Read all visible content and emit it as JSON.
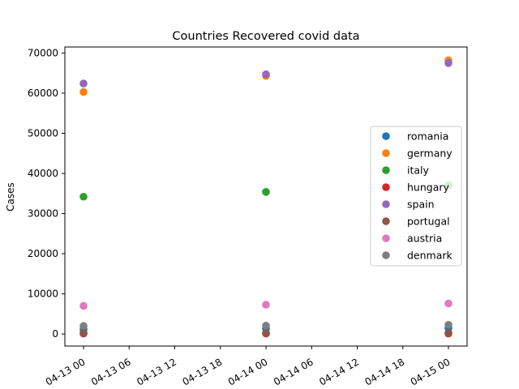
{
  "chart_data": {
    "type": "scatter",
    "title": "Countries Recovered covid data",
    "xlabel": "",
    "ylabel": "Cases",
    "x": [
      "2020-04-13 00:00",
      "2020-04-14 00:00",
      "2020-04-15 00:00"
    ],
    "x_ticks": [
      "04-13 00",
      "04-13 06",
      "04-13 12",
      "04-13 18",
      "04-14 00",
      "04-14 06",
      "04-14 12",
      "04-14 18",
      "04-15 00"
    ],
    "y_ticks": [
      0,
      10000,
      20000,
      30000,
      40000,
      50000,
      60000,
      70000
    ],
    "ylim": [
      -3000,
      71500
    ],
    "grid": false,
    "legend_position": "center-right",
    "series": [
      {
        "name": "romania",
        "color": "#1f77b4",
        "values": [
          1100,
          1300,
          1500
        ]
      },
      {
        "name": "germany",
        "color": "#ff7f0e",
        "values": [
          60300,
          64300,
          68200
        ]
      },
      {
        "name": "italy",
        "color": "#2ca02c",
        "values": [
          34200,
          35400,
          37100
        ]
      },
      {
        "name": "hungary",
        "color": "#d62728",
        "values": [
          100,
          110,
          120
        ]
      },
      {
        "name": "spain",
        "color": "#9467bd",
        "values": [
          62400,
          64700,
          67500
        ]
      },
      {
        "name": "portugal",
        "color": "#8c564b",
        "values": [
          200,
          220,
          280
        ]
      },
      {
        "name": "austria",
        "color": "#e377c2",
        "values": [
          7000,
          7300,
          7600
        ]
      },
      {
        "name": "denmark",
        "color": "#7f7f7f",
        "values": [
          2000,
          2100,
          2300
        ]
      }
    ]
  }
}
